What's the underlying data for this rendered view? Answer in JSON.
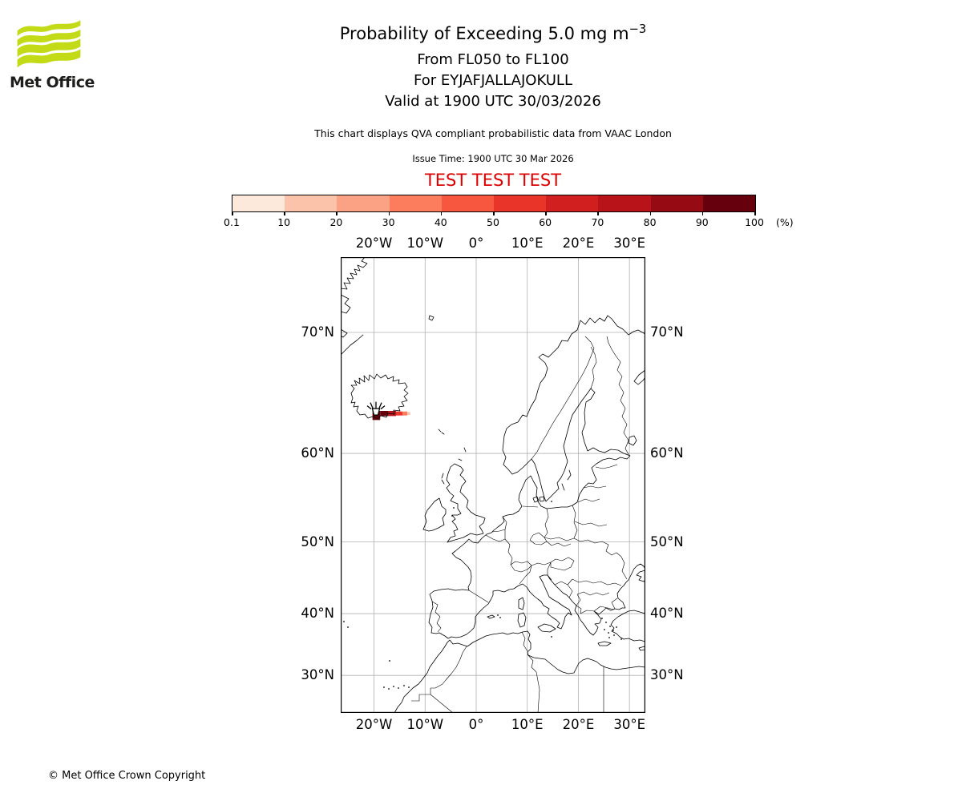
{
  "header": {
    "logo_text": "Met Office",
    "title_main": "Probability of Exceeding 5.0 mg m",
    "title_sup": "−3",
    "subtitle1": "From FL050 to FL100",
    "subtitle2": "For EYJAFJALLAJOKULL",
    "subtitle3": "Valid at 1900 UTC 30/03/2026",
    "note": "This chart displays QVA compliant probabilistic data from VAAC London",
    "issue_time": "Issue Time: 1900 UTC 30 Mar 2026",
    "test_banner": "TEST TEST TEST"
  },
  "colorbar": {
    "unit": "(%)",
    "tick_labels": [
      "0.1",
      "10",
      "20",
      "30",
      "40",
      "50",
      "60",
      "70",
      "80",
      "90",
      "100"
    ],
    "colors": [
      "#fde9dc",
      "#fcc3ab",
      "#fca284",
      "#fb7d5d",
      "#f6573e",
      "#e83429",
      "#d01f1e",
      "#b71318",
      "#960b13",
      "#67000d"
    ]
  },
  "map": {
    "x_ticks": [
      {
        "label": "20°W",
        "lon": -20
      },
      {
        "label": "10°W",
        "lon": -10
      },
      {
        "label": "0°",
        "lon": 0
      },
      {
        "label": "10°E",
        "lon": 10
      },
      {
        "label": "20°E",
        "lon": 20
      },
      {
        "label": "30°E",
        "lon": 30
      }
    ],
    "y_ticks": [
      {
        "label": "70°N",
        "lat": 70
      },
      {
        "label": "60°N",
        "lat": 60
      },
      {
        "label": "50°N",
        "lat": 50
      },
      {
        "label": "40°N",
        "lat": 40
      },
      {
        "label": "30°N",
        "lat": 30
      }
    ]
  },
  "chart_data": {
    "type": "heatmap",
    "title": "Probability of Exceeding 5.0 mg m−3",
    "threshold": "5.0 mg m−3",
    "layer": "FL050 to FL100",
    "volcano": {
      "name": "EYJAFJALLAJOKULL",
      "lat": 63.63,
      "lon": -19.62
    },
    "valid_time": "1900 UTC 30/03/2026",
    "issue_time": "1900 UTC 30 Mar 2026",
    "source": "VAAC London",
    "scale_percent": [
      0.1,
      10,
      20,
      30,
      40,
      50,
      60,
      70,
      80,
      90,
      100
    ],
    "projection": "Mercator",
    "map_extent": {
      "lon": [
        -26.5,
        33.1
      ],
      "lat": [
        23.8,
        74.5
      ]
    },
    "grid": true,
    "plume": {
      "description": "Narrow ash plume extending east from Eyjafjallajokull along ~63.5-64N, highest probability nearest the volcano",
      "max_probability_percent": 100,
      "cells": [
        {
          "lon": [
            -20.3,
            -18.8
          ],
          "lat": [
            63.15,
            63.95
          ],
          "percent": [
            90,
            100
          ]
        },
        {
          "lon": [
            -18.8,
            -17.2
          ],
          "lat": [
            63.5,
            63.95
          ],
          "percent": [
            90,
            100
          ]
        },
        {
          "lon": [
            -17.2,
            -15.7
          ],
          "lat": [
            63.5,
            63.95
          ],
          "percent": [
            70,
            80
          ]
        },
        {
          "lon": [
            -15.7,
            -14.4
          ],
          "lat": [
            63.55,
            63.9
          ],
          "percent": [
            50,
            60
          ]
        },
        {
          "lon": [
            -14.4,
            -13.5
          ],
          "lat": [
            63.55,
            63.9
          ],
          "percent": [
            30,
            40
          ]
        },
        {
          "lon": [
            -13.5,
            -12.9
          ],
          "lat": [
            63.6,
            63.85
          ],
          "percent": [
            10,
            20
          ]
        }
      ]
    }
  },
  "footer": {
    "copyright": "© Met Office Crown Copyright"
  },
  "colors": {
    "logo_green": "#c3db16",
    "test_red": "#dd0000",
    "grid_gray": "#b0b0b0",
    "coast_black": "#000000"
  }
}
